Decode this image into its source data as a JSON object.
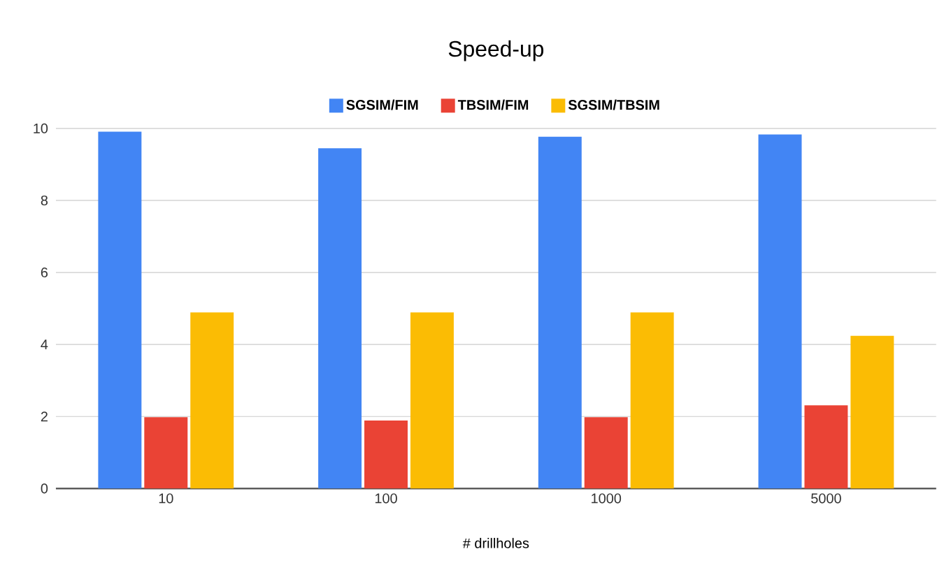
{
  "chart_data": {
    "type": "bar",
    "title": "Speed-up",
    "xlabel": "# drillholes",
    "categories": [
      "10",
      "100",
      "1000",
      "5000"
    ],
    "series": [
      {
        "name": "SGSIM/FIM",
        "color": "#4285f4",
        "values": [
          9.91,
          9.45,
          9.77,
          9.83
        ]
      },
      {
        "name": "TBSIM/FIM",
        "color": "#ea4335",
        "values": [
          1.98,
          1.89,
          1.98,
          2.31
        ]
      },
      {
        "name": "SGSIM/TBSIM",
        "color": "#fbbc04",
        "values": [
          4.89,
          4.89,
          4.89,
          4.24
        ]
      }
    ],
    "ylim": [
      0,
      10
    ],
    "yticks": [
      0,
      2,
      4,
      6,
      8,
      10
    ],
    "grid": "y",
    "legend": "top"
  }
}
